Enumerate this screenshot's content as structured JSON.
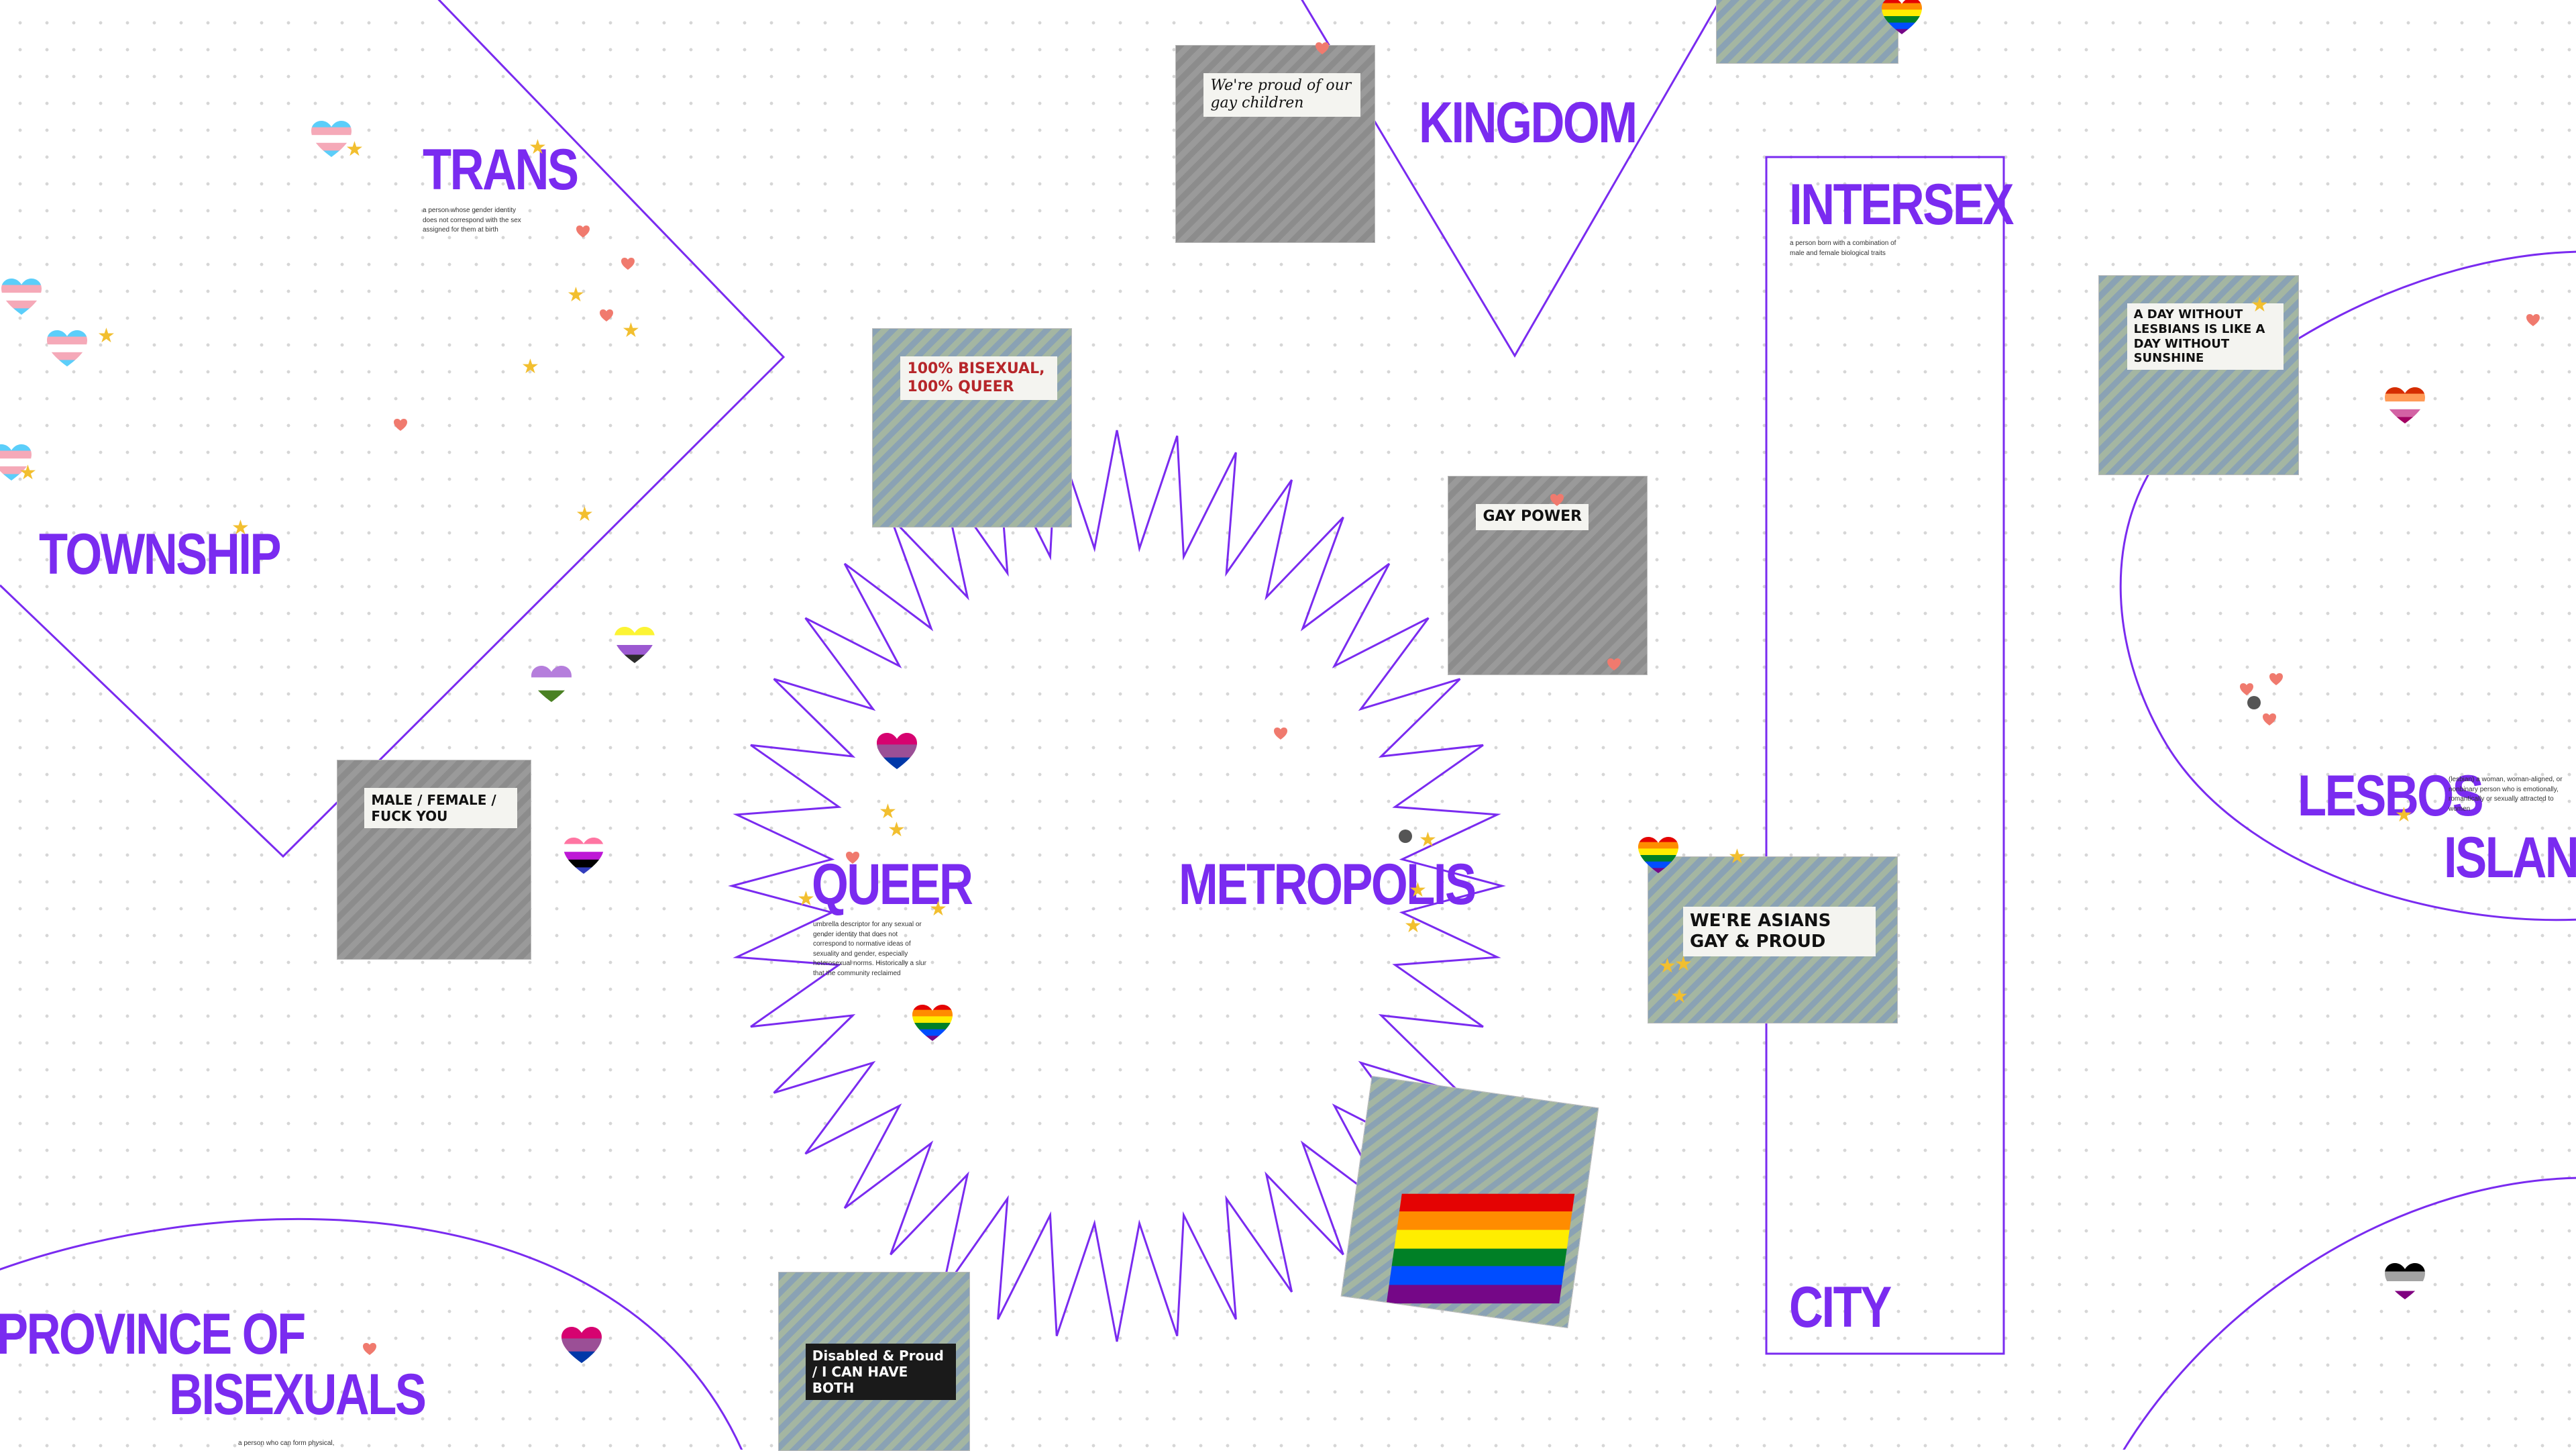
{
  "canvas": {
    "background": "#ffffff",
    "dot_grid_color": "#d6d6d6",
    "accent": "#7a2bf0"
  },
  "regions": {
    "kingdom": {
      "title": "KINGDOM"
    },
    "trans": {
      "title": "TRANS",
      "description": "a person whose gender identity does not correspond with the sex assigned for them at birth"
    },
    "intersex": {
      "title": "INTERSEX",
      "description": "a person born with a combination of male and female biological traits"
    },
    "township": {
      "title": "TOWNSHIP"
    },
    "lesbos": {
      "title_line1": "LESBOS",
      "title_line2": "ISLAND",
      "description": "(lesbian) a woman, woman-aligned, or nonbinary person who is emotionally, romantically or sexually attracted to women"
    },
    "queer": {
      "title": "QUEER",
      "description": "umbrella descriptor for any sexual or gender identity that does not correspond to normative ideas of sexuality and gender, especially heterosexual norms. Historically a slur that the community reclaimed"
    },
    "metropolis": {
      "title": "METROPOLIS"
    },
    "city": {
      "title": "CITY"
    },
    "province": {
      "title_line1": "PROVINCE OF",
      "title_line2": "BISEXUALS",
      "description": "a person who can form physical,"
    }
  },
  "photos": [
    {
      "name": "photo-proud-parents",
      "caption": "We're proud of our gay children"
    },
    {
      "name": "photo-bisexual-queer-sign",
      "caption": "100% BISEXUAL, 100% QUEER"
    },
    {
      "name": "photo-gay-power-march",
      "caption": "GAY POWER"
    },
    {
      "name": "photo-lesbians-sunshine",
      "caption": "A DAY WITHOUT LESBIANS IS LIKE A DAY WITHOUT SUNSHINE"
    },
    {
      "name": "photo-gender-checkbox-sign",
      "caption": "MALE / FEMALE / FUCK YOU"
    },
    {
      "name": "photo-asians-gay-proud",
      "caption": "WE'RE ASIANS GAY & PROUD"
    },
    {
      "name": "photo-pride-flag-capitol",
      "caption": ""
    },
    {
      "name": "photo-disabled-proud",
      "caption": "Disabled & Proud / I CAN HAVE BOTH"
    }
  ],
  "flag_colors": {
    "trans": [
      "#5bcefa",
      "#f5a9b8",
      "#ffffff",
      "#f5a9b8",
      "#5bcefa"
    ],
    "bi": [
      "#d60270",
      "#9b4f96",
      "#0038a8"
    ],
    "rainbow": [
      "#e40303",
      "#ff8c00",
      "#ffed00",
      "#008026",
      "#004dff",
      "#750787"
    ],
    "nonbinary": [
      "#fcf434",
      "#ffffff",
      "#9c59d1",
      "#2c2c2c"
    ],
    "genderqueer": [
      "#b57edc",
      "#ffffff",
      "#4a8123"
    ],
    "lesbian": [
      "#d52d00",
      "#ff9a56",
      "#ffffff",
      "#d362a4",
      "#a30262"
    ],
    "genderfluid": [
      "#ff75a2",
      "#ffffff",
      "#be18d6",
      "#000000",
      "#333ebd"
    ],
    "asexual": [
      "#000000",
      "#a3a3a3",
      "#ffffff",
      "#800080"
    ]
  }
}
